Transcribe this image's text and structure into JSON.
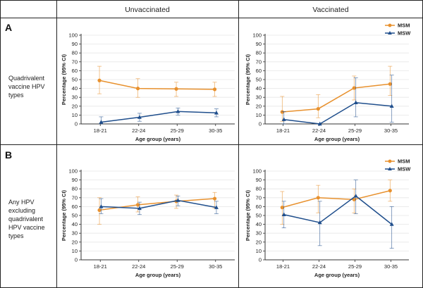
{
  "figure": {
    "column_headers": [
      "Unvaccinated",
      "Vaccinated"
    ],
    "row_labels": [
      {
        "letter": "A",
        "lines": [
          "Quadrivalent",
          "vaccine HPV",
          "types"
        ]
      },
      {
        "letter": "B",
        "lines": [
          "Any HPV",
          "excluding",
          "quadrivalent",
          "HPV vaccine",
          "types"
        ]
      }
    ],
    "colors": {
      "MSM": "#E8912E",
      "MSW": "#1F4E8C"
    }
  },
  "chart_data": [
    {
      "type": "line",
      "panel": "A-unvaccinated",
      "categories": [
        "18-21",
        "22-24",
        "25-29",
        "30-35"
      ],
      "xlabel": "Age group (years)",
      "ylabel": "Percentage (95% CI)",
      "ylim": [
        0,
        100
      ],
      "yticks": [
        0,
        10,
        20,
        30,
        40,
        50,
        60,
        70,
        80,
        90,
        100
      ],
      "legend": null,
      "series": [
        {
          "name": "MSM",
          "marker": "circle",
          "values": [
            49,
            40,
            39.5,
            39
          ],
          "lower": [
            34,
            30,
            31,
            31
          ],
          "upper": [
            65,
            51,
            47,
            47
          ]
        },
        {
          "name": "MSW",
          "marker": "triangle",
          "values": [
            2,
            7.5,
            14,
            12.5
          ],
          "lower": [
            0,
            3,
            10,
            8
          ],
          "upper": [
            8,
            12,
            18,
            17
          ]
        }
      ]
    },
    {
      "type": "line",
      "panel": "A-vaccinated",
      "categories": [
        "18-21",
        "22-24",
        "25-29",
        "30-35"
      ],
      "xlabel": "Age group (years)",
      "ylabel": "Percentage (95% CI)",
      "ylim": [
        0,
        100
      ],
      "yticks": [
        0,
        10,
        20,
        30,
        40,
        50,
        60,
        70,
        80,
        90,
        100
      ],
      "legend": "top-right",
      "series": [
        {
          "name": "MSM",
          "marker": "circle",
          "values": [
            13.5,
            17,
            40.5,
            45
          ],
          "lower": [
            3,
            7,
            27,
            32
          ],
          "upper": [
            31,
            33,
            54,
            65
          ]
        },
        {
          "name": "MSW",
          "marker": "triangle",
          "values": [
            5,
            0,
            24,
            20
          ],
          "lower": [
            0,
            0,
            8,
            2
          ],
          "upper": [
            14,
            0,
            52,
            55
          ]
        }
      ]
    },
    {
      "type": "line",
      "panel": "B-unvaccinated",
      "categories": [
        "18-21",
        "22-24",
        "25-29",
        "30-35"
      ],
      "xlabel": "Age group (years)",
      "ylabel": "Percentage (95% CI)",
      "ylim": [
        0,
        100
      ],
      "yticks": [
        0,
        10,
        20,
        30,
        40,
        50,
        60,
        70,
        80,
        90,
        100
      ],
      "legend": null,
      "series": [
        {
          "name": "MSM",
          "marker": "circle",
          "values": [
            56,
            62,
            66,
            69
          ],
          "lower": [
            40,
            54,
            58,
            58
          ],
          "upper": [
            70,
            71,
            73,
            76
          ]
        },
        {
          "name": "MSW",
          "marker": "triangle",
          "values": [
            60,
            58,
            67,
            59
          ],
          "lower": [
            52,
            51,
            61,
            52
          ],
          "upper": [
            69,
            65,
            72,
            66
          ]
        }
      ]
    },
    {
      "type": "line",
      "panel": "B-vaccinated",
      "categories": [
        "18-21",
        "22-24",
        "25-29",
        "30-35"
      ],
      "xlabel": "Age group (years)",
      "ylabel": "Percentage (95% CI)",
      "ylim": [
        0,
        100
      ],
      "yticks": [
        0,
        10,
        20,
        30,
        40,
        50,
        60,
        70,
        80,
        90,
        100
      ],
      "legend": "top-right",
      "series": [
        {
          "name": "MSM",
          "marker": "circle",
          "values": [
            59,
            70,
            68,
            78
          ],
          "lower": [
            40,
            53,
            53,
            66
          ],
          "upper": [
            77,
            84,
            80,
            90
          ]
        },
        {
          "name": "MSW",
          "marker": "triangle",
          "values": [
            51,
            42,
            72,
            40
          ],
          "lower": [
            36,
            16,
            52,
            13
          ],
          "upper": [
            66,
            66,
            90,
            60
          ]
        }
      ]
    }
  ]
}
